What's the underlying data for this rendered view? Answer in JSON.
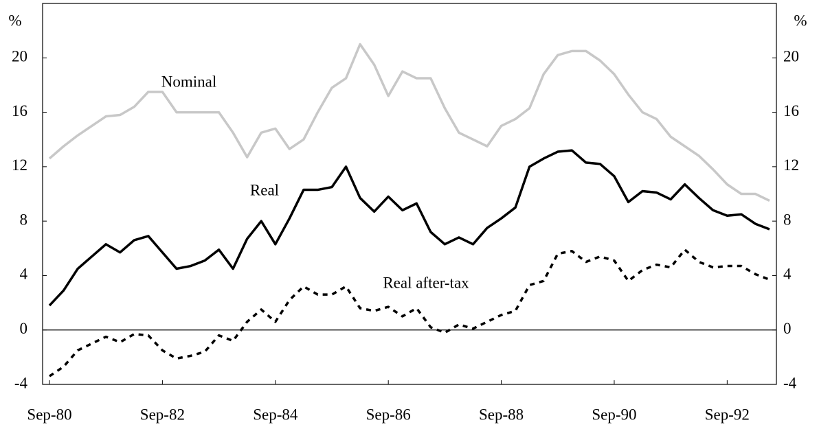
{
  "chart_data": {
    "type": "line",
    "y_unit_label": "%",
    "annotations": [
      "Nominal",
      "Real",
      "Real after-tax"
    ],
    "categories": [
      "Sep-80",
      null,
      null,
      null,
      null,
      null,
      null,
      null,
      "Sep-82",
      null,
      null,
      null,
      null,
      null,
      null,
      null,
      "Sep-84",
      null,
      null,
      null,
      null,
      null,
      null,
      null,
      "Sep-86",
      null,
      null,
      null,
      null,
      null,
      null,
      null,
      "Sep-88",
      null,
      null,
      null,
      null,
      null,
      null,
      null,
      "Sep-90",
      null,
      null,
      null,
      null,
      null,
      null,
      null,
      "Sep-92",
      null,
      null,
      null
    ],
    "series": [
      {
        "name": "Nominal",
        "color": "#c8c8c8",
        "line_style": "solid",
        "values": [
          12.6,
          13.5,
          14.3,
          15.0,
          15.7,
          15.8,
          16.4,
          17.5,
          17.5,
          16.0,
          16.0,
          16.0,
          16.0,
          14.5,
          12.7,
          14.5,
          14.8,
          13.3,
          14.0,
          16.0,
          17.8,
          18.5,
          21.0,
          19.5,
          17.2,
          19.0,
          18.5,
          18.5,
          16.3,
          14.5,
          14.0,
          13.5,
          15.0,
          15.5,
          16.3,
          18.8,
          20.2,
          20.5,
          20.5,
          19.8,
          18.8,
          17.3,
          16.0,
          15.5,
          14.2,
          13.5,
          12.8,
          11.8,
          10.7,
          10.0,
          10.0,
          9.5
        ]
      },
      {
        "name": "Real",
        "color": "#000000",
        "line_style": "solid",
        "values": [
          1.8,
          2.9,
          4.5,
          5.4,
          6.3,
          5.7,
          6.6,
          6.9,
          5.7,
          4.5,
          4.7,
          5.1,
          5.9,
          4.5,
          6.7,
          8.0,
          6.3,
          8.2,
          10.3,
          10.3,
          10.5,
          12.0,
          9.7,
          8.7,
          9.8,
          8.8,
          9.3,
          7.2,
          6.3,
          6.8,
          6.3,
          7.5,
          8.2,
          9.0,
          12.0,
          12.6,
          13.1,
          13.2,
          12.3,
          12.2,
          11.3,
          9.4,
          10.2,
          10.1,
          9.6,
          10.7,
          9.7,
          8.8,
          8.4,
          8.5,
          7.8,
          7.4
        ]
      },
      {
        "name": "Real after-tax",
        "color": "#000000",
        "line_style": "dashed",
        "values": [
          -3.4,
          -2.7,
          -1.5,
          -1.0,
          -0.5,
          -0.9,
          -0.3,
          -0.4,
          -1.5,
          -2.1,
          -1.9,
          -1.6,
          -0.4,
          -0.8,
          0.6,
          1.5,
          0.6,
          2.2,
          3.2,
          2.6,
          2.6,
          3.2,
          1.6,
          1.4,
          1.7,
          1.0,
          1.6,
          0.2,
          -0.2,
          0.4,
          0.1,
          0.6,
          1.1,
          1.4,
          3.3,
          3.6,
          5.6,
          5.8,
          5.0,
          5.4,
          5.1,
          3.6,
          4.4,
          4.8,
          4.6,
          5.9,
          5.0,
          4.6,
          4.7,
          4.7,
          4.1,
          3.7
        ]
      }
    ],
    "ylim": [
      -4,
      24
    ],
    "yticks": [
      -4,
      0,
      4,
      8,
      12,
      16,
      20
    ],
    "y2lim": [
      -4,
      24
    ],
    "y2ticks": [
      -4,
      0,
      4,
      8,
      12,
      16,
      20
    ],
    "zero_line": true
  }
}
